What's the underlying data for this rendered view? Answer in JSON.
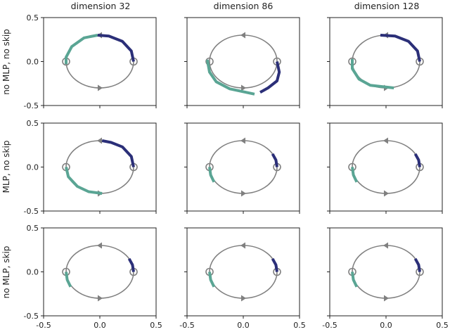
{
  "chart_data": {
    "type": "line",
    "layout": "3x3 grid",
    "column_titles": [
      "dimension 32",
      "dimension 86",
      "dimension 128"
    ],
    "row_labels": [
      "no MLP, no skip",
      "MLP, no skip",
      "no MLP, skip"
    ],
    "xlim": [
      -0.5,
      0.5
    ],
    "ylim": [
      -0.5,
      0.5
    ],
    "x_ticks": [
      "-0.5",
      "0.0",
      "0.5"
    ],
    "y_ticks": [
      "0.5",
      "0.0",
      "-0.5"
    ],
    "grid": false,
    "colors": {
      "reference": "#808080",
      "trajectory_a": "#2b2f78",
      "trajectory_b": "#5aa594"
    },
    "reference_orbit": {
      "shape": "ellipse",
      "center": [
        0.0,
        0.0
      ],
      "radius_x": 0.3,
      "radius_y": 0.3,
      "fixed_points": [
        [
          -0.3,
          0.0
        ],
        [
          0.3,
          0.0
        ]
      ],
      "direction": "counterclockwise"
    },
    "panels": [
      {
        "row": 0,
        "col": 0,
        "trajectory_a": [
          [
            0.3,
            0.0
          ],
          [
            0.28,
            0.12
          ],
          [
            0.2,
            0.23
          ],
          [
            0.08,
            0.29
          ],
          [
            -0.02,
            0.3
          ]
        ],
        "trajectory_b": [
          [
            -0.02,
            0.3
          ],
          [
            -0.14,
            0.27
          ],
          [
            -0.25,
            0.17
          ],
          [
            -0.3,
            0.05
          ],
          [
            -0.3,
            -0.03
          ]
        ]
      },
      {
        "row": 0,
        "col": 1,
        "trajectory_a": [
          [
            0.3,
            0.0
          ],
          [
            0.32,
            -0.12
          ],
          [
            0.3,
            -0.22
          ],
          [
            0.22,
            -0.3
          ],
          [
            0.15,
            -0.35
          ]
        ],
        "trajectory_b": [
          [
            -0.32,
            0.02
          ],
          [
            -0.3,
            -0.12
          ],
          [
            -0.24,
            -0.23
          ],
          [
            -0.12,
            -0.31
          ],
          [
            0.1,
            -0.37
          ]
        ]
      },
      {
        "row": 0,
        "col": 2,
        "trajectory_a": [
          [
            0.3,
            0.0
          ],
          [
            0.28,
            0.12
          ],
          [
            0.2,
            0.23
          ],
          [
            0.08,
            0.29
          ],
          [
            -0.05,
            0.3
          ]
        ],
        "trajectory_b": [
          [
            -0.3,
            0.03
          ],
          [
            -0.3,
            -0.08
          ],
          [
            -0.24,
            -0.2
          ],
          [
            -0.14,
            -0.27
          ],
          [
            0.07,
            -0.3
          ]
        ]
      },
      {
        "row": 1,
        "col": 0,
        "trajectory_a": [
          [
            0.3,
            0.0
          ],
          [
            0.28,
            0.12
          ],
          [
            0.2,
            0.23
          ],
          [
            0.1,
            0.28
          ],
          [
            0.02,
            0.3
          ]
        ],
        "trajectory_b": [
          [
            -0.3,
            0.0
          ],
          [
            -0.28,
            -0.11
          ],
          [
            -0.2,
            -0.22
          ],
          [
            -0.1,
            -0.28
          ],
          [
            0.02,
            -0.3
          ]
        ]
      },
      {
        "row": 1,
        "col": 1,
        "trajectory_a": [
          [
            0.3,
            0.0
          ],
          [
            0.29,
            0.08
          ],
          [
            0.26,
            0.15
          ]
        ],
        "trajectory_b": [
          [
            -0.3,
            0.0
          ],
          [
            -0.29,
            -0.09
          ],
          [
            -0.26,
            -0.17
          ]
        ]
      },
      {
        "row": 1,
        "col": 2,
        "trajectory_a": [
          [
            0.3,
            0.0
          ],
          [
            0.29,
            0.08
          ],
          [
            0.26,
            0.15
          ]
        ],
        "trajectory_b": [
          [
            -0.3,
            0.0
          ],
          [
            -0.29,
            -0.09
          ],
          [
            -0.26,
            -0.17
          ]
        ]
      },
      {
        "row": 2,
        "col": 0,
        "trajectory_a": [
          [
            0.3,
            0.0
          ],
          [
            0.29,
            0.08
          ],
          [
            0.26,
            0.15
          ]
        ],
        "trajectory_b": [
          [
            -0.3,
            0.0
          ],
          [
            -0.29,
            -0.09
          ],
          [
            -0.26,
            -0.17
          ]
        ]
      },
      {
        "row": 2,
        "col": 1,
        "trajectory_a": [
          [
            0.3,
            0.0
          ],
          [
            0.29,
            0.08
          ],
          [
            0.26,
            0.15
          ]
        ],
        "trajectory_b": [
          [
            -0.3,
            0.0
          ],
          [
            -0.29,
            -0.09
          ],
          [
            -0.26,
            -0.17
          ]
        ]
      },
      {
        "row": 2,
        "col": 2,
        "trajectory_a": [
          [
            0.3,
            0.0
          ],
          [
            0.29,
            0.08
          ],
          [
            0.26,
            0.15
          ]
        ],
        "trajectory_b": [
          [
            -0.3,
            0.0
          ],
          [
            -0.29,
            -0.09
          ],
          [
            -0.26,
            -0.17
          ]
        ]
      }
    ]
  }
}
